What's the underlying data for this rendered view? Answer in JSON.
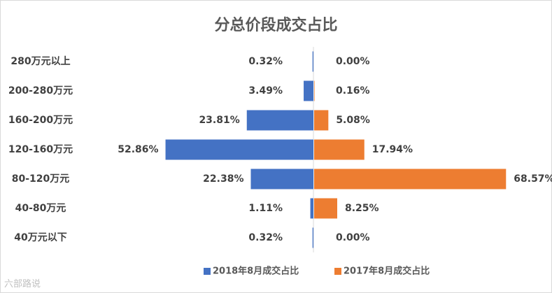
{
  "chart_data": {
    "type": "bar",
    "orientation": "horizontal-butterfly",
    "title": "分总价段成交占比",
    "categories": [
      "280万元以上",
      "200-280万元",
      "160-200万元",
      "120-160万元",
      "80-120万元",
      "40-80万元",
      "40万元以下"
    ],
    "series": [
      {
        "name": "2018年8月成交占比",
        "color": "#4472c4",
        "direction": "left",
        "values": [
          0.32,
          3.49,
          23.81,
          52.86,
          22.38,
          1.11,
          0.32
        ],
        "labels": [
          "0.32%",
          "3.49%",
          "23.81%",
          "52.86%",
          "22.38%",
          "1.11%",
          "0.32%"
        ]
      },
      {
        "name": "2017年8月成交占比",
        "color": "#ed7d31",
        "direction": "right",
        "values": [
          0.0,
          0.16,
          5.08,
          17.94,
          68.57,
          8.25,
          0.0
        ],
        "labels": [
          "0.00%",
          "0.16%",
          "5.08%",
          "17.94%",
          "68.57%",
          "8.25%",
          "0.00%"
        ]
      }
    ],
    "xlim": [
      -70,
      70
    ],
    "legend_position": "bottom"
  },
  "watermark": "六部路说"
}
